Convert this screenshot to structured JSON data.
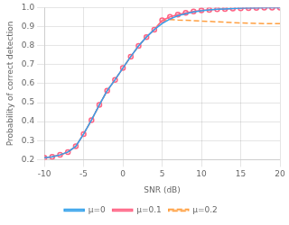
{
  "chart_data": {
    "type": "line",
    "xlabel": "SNR (dB)",
    "ylabel": "Probability of correct detection",
    "x": [
      -10,
      -9,
      -8,
      -7,
      -6,
      -5,
      -4,
      -3,
      -2,
      -1,
      0,
      1,
      2,
      3,
      4,
      5,
      6,
      7,
      8,
      9,
      10,
      11,
      12,
      13,
      14,
      15,
      16,
      17,
      18,
      19,
      20
    ],
    "series": [
      {
        "name": "μ=0",
        "line_style": "solid",
        "values": [
          0.21,
          0.215,
          0.225,
          0.24,
          0.27,
          0.335,
          0.408,
          0.488,
          0.563,
          0.62,
          0.682,
          0.742,
          0.798,
          0.845,
          0.884,
          0.916,
          0.94,
          0.957,
          0.968,
          0.977,
          0.983,
          0.988,
          0.991,
          0.993,
          0.995,
          0.997,
          0.998,
          0.998,
          0.999,
          0.999,
          1.0
        ]
      },
      {
        "name": "μ=0.1",
        "line_style": "solid",
        "marker": "circle",
        "values": [
          0.21,
          0.215,
          0.225,
          0.24,
          0.27,
          0.335,
          0.408,
          0.488,
          0.563,
          0.62,
          0.682,
          0.742,
          0.798,
          0.845,
          0.884,
          0.933,
          0.951,
          0.963,
          0.972,
          0.979,
          0.985,
          0.988,
          0.991,
          0.993,
          0.995,
          0.996,
          0.997,
          0.998,
          0.999,
          0.999,
          1.0
        ]
      },
      {
        "name": "μ=0.2",
        "line_style": "dashed",
        "values": [
          0.21,
          0.215,
          0.225,
          0.24,
          0.27,
          0.335,
          0.408,
          0.488,
          0.563,
          0.62,
          0.682,
          0.742,
          0.798,
          0.845,
          0.884,
          0.932,
          0.937,
          0.934,
          0.933,
          0.931,
          0.929,
          0.927,
          0.925,
          0.923,
          0.921,
          0.919,
          0.918,
          0.917,
          0.916,
          0.915,
          0.915
        ]
      }
    ],
    "xlim": [
      -10,
      20
    ],
    "xticks": [
      -10,
      -5,
      0,
      5,
      10,
      15,
      20
    ],
    "ylim": [
      0.2,
      1.0
    ],
    "yticks": [
      0.2,
      0.3,
      0.4,
      0.5,
      0.6,
      0.7,
      0.8,
      0.9,
      {
        "value": 1.0,
        "label": "1.0"
      }
    ],
    "grid": true,
    "legend": "bottom"
  }
}
